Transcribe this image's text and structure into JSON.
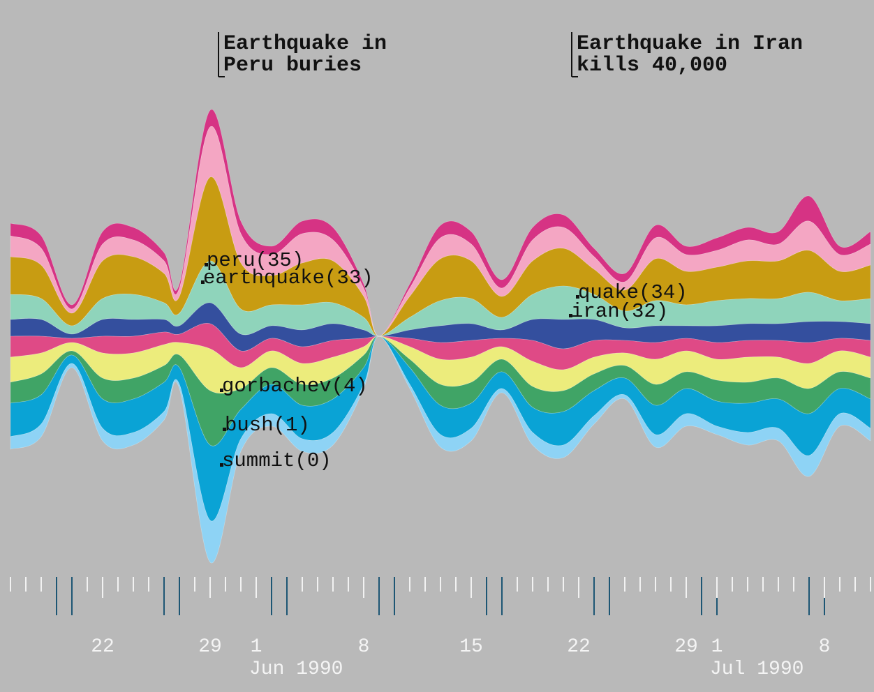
{
  "chart_data": {
    "type": "streamgraph",
    "x": [
      "1990-05-16",
      "1990-05-18",
      "1990-05-20",
      "1990-05-22",
      "1990-05-24",
      "1990-05-26",
      "1990-05-27",
      "1990-05-29",
      "1990-05-31",
      "1990-06-02",
      "1990-06-04",
      "1990-06-06",
      "1990-06-08",
      "1990-06-09",
      "1990-06-11",
      "1990-06-13",
      "1990-06-15",
      "1990-06-17",
      "1990-06-19",
      "1990-06-21",
      "1990-06-23",
      "1990-06-25",
      "1990-06-27",
      "1990-06-29",
      "1990-07-01",
      "1990-07-03",
      "1990-07-05",
      "1990-07-07",
      "1990-07-09",
      "1990-07-11"
    ],
    "xlim": [
      "1990-05-15",
      "1990-07-12"
    ],
    "xticks": [
      {
        "value": "1990-05-22",
        "label": "22"
      },
      {
        "value": "1990-05-29",
        "label": "29"
      },
      {
        "value": "1990-06-01",
        "label": "1"
      },
      {
        "value": "1990-06-08",
        "label": "8"
      },
      {
        "value": "1990-06-15",
        "label": "15"
      },
      {
        "value": "1990-06-22",
        "label": "22"
      },
      {
        "value": "1990-06-29",
        "label": "29"
      },
      {
        "value": "1990-07-01",
        "label": "1"
      },
      {
        "value": "1990-07-08",
        "label": "8"
      }
    ],
    "month_labels": [
      {
        "value": "1990-06-01",
        "label": "Jun 1990"
      },
      {
        "value": "1990-07-01",
        "label": "Jul 1990"
      }
    ],
    "annotations": [
      {
        "x": "1990-05-29",
        "lines": [
          "Earthquake in",
          "Peru buries"
        ]
      },
      {
        "x": "1990-06-21",
        "lines": [
          "Earthquake in Iran",
          "kills 40,000"
        ]
      }
    ],
    "series": [
      {
        "color": "#d63384",
        "values": [
          3,
          3,
          1,
          3,
          3,
          2,
          1,
          4,
          3,
          2,
          3,
          3,
          1,
          0,
          1,
          3,
          3,
          2,
          3,
          3,
          2,
          2,
          3,
          2,
          3,
          3,
          3,
          6,
          2,
          3
        ]
      },
      {
        "name": "peru(35)",
        "color": "#f4a6c3",
        "values": [
          5,
          4,
          1,
          4,
          4,
          3,
          2,
          12,
          7,
          5,
          7,
          5,
          2,
          0,
          2,
          5,
          4,
          2,
          5,
          5,
          3,
          2,
          5,
          4,
          4,
          5,
          4,
          7,
          4,
          5
        ]
      },
      {
        "name": "earthquake(33)",
        "color": "#c89c12",
        "values": [
          9,
          8,
          3,
          9,
          9,
          7,
          4,
          20,
          11,
          7,
          10,
          10,
          5,
          0,
          5,
          10,
          9,
          5,
          8,
          9,
          6,
          5,
          10,
          8,
          8,
          9,
          9,
          10,
          7,
          8
        ]
      },
      {
        "name": "quake(34)",
        "color": "#8fd4bb",
        "values": [
          6,
          5,
          2,
          5,
          6,
          4,
          3,
          10,
          6,
          5,
          6,
          5,
          3,
          0,
          3,
          6,
          6,
          3,
          6,
          8,
          6,
          4,
          6,
          5,
          6,
          6,
          6,
          7,
          5,
          6
        ]
      },
      {
        "name": "iran(32)",
        "color": "#344f9e",
        "values": [
          4,
          4,
          1,
          4,
          4,
          3,
          2,
          5,
          4,
          3,
          4,
          4,
          2,
          0,
          2,
          4,
          4,
          2,
          5,
          7,
          5,
          3,
          4,
          3,
          4,
          4,
          4,
          5,
          4,
          4
        ]
      },
      {
        "color": "#df4a86",
        "values": [
          5,
          4,
          1,
          4,
          4,
          3,
          2,
          6,
          4,
          3,
          4,
          4,
          2,
          0,
          2,
          4,
          4,
          2,
          5,
          5,
          4,
          3,
          4,
          3,
          4,
          4,
          4,
          5,
          3,
          4
        ]
      },
      {
        "color": "#ecec7c",
        "values": [
          6,
          5,
          2,
          6,
          6,
          5,
          3,
          10,
          5,
          4,
          5,
          5,
          2,
          0,
          3,
          6,
          6,
          3,
          6,
          5,
          4,
          3,
          6,
          5,
          5,
          6,
          5,
          6,
          5,
          5
        ]
      },
      {
        "name": "gorbachev(4)",
        "color": "#40a466",
        "values": [
          5,
          5,
          1,
          5,
          5,
          4,
          3,
          13,
          5,
          4,
          5,
          5,
          3,
          0,
          2,
          5,
          5,
          3,
          5,
          5,
          4,
          3,
          5,
          4,
          5,
          5,
          5,
          6,
          4,
          5
        ]
      },
      {
        "name": "bush(1)",
        "color": "#0aa3d5",
        "values": [
          8,
          7,
          2,
          7,
          8,
          7,
          4,
          18,
          7,
          7,
          8,
          8,
          4,
          0,
          4,
          7,
          6,
          4,
          6,
          8,
          6,
          4,
          7,
          6,
          6,
          7,
          7,
          10,
          6,
          7
        ]
      },
      {
        "name": "summit(0)",
        "color": "#8ed3f5",
        "values": [
          3,
          3,
          1,
          3,
          3,
          2,
          1,
          10,
          3,
          3,
          3,
          3,
          1,
          0,
          1,
          3,
          3,
          1,
          3,
          3,
          2,
          1,
          3,
          3,
          2,
          3,
          3,
          5,
          3,
          3
        ]
      }
    ]
  }
}
